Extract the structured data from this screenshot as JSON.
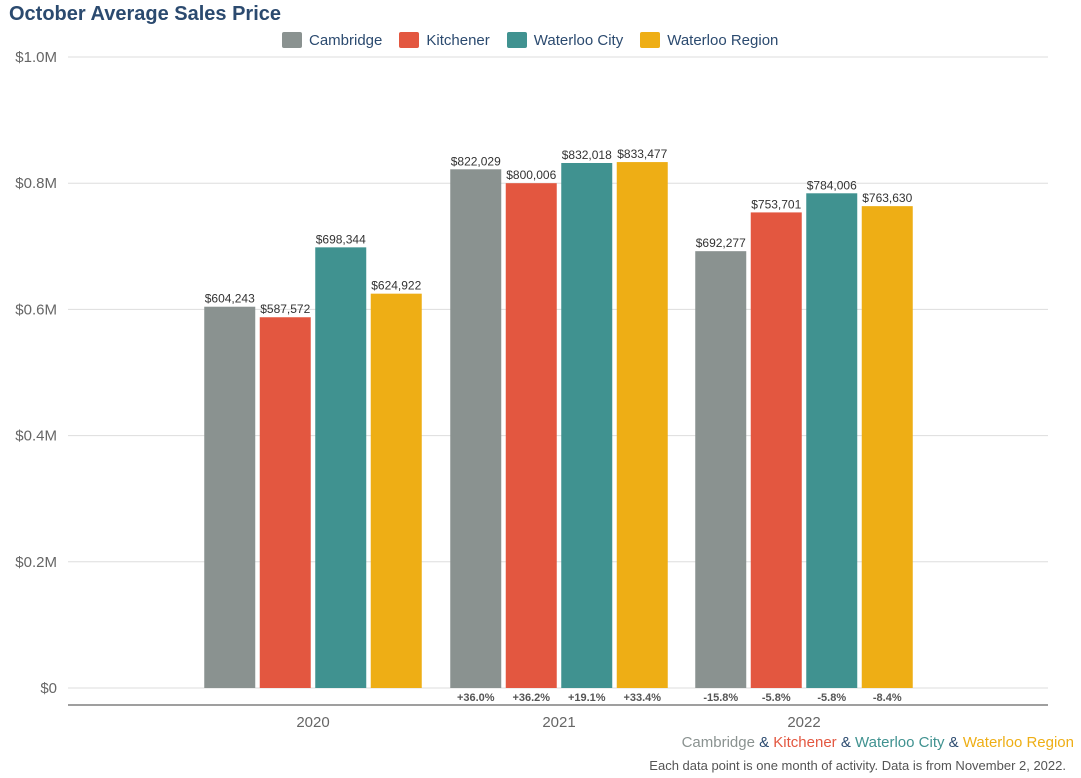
{
  "chart_data": {
    "type": "bar",
    "title": "October Average Sales Price",
    "categories": [
      "2020",
      "2021",
      "2022"
    ],
    "series": [
      {
        "name": "Cambridge",
        "color": "#8a9290",
        "values": [
          604243,
          822029,
          692277
        ],
        "value_labels": [
          "$604,243",
          "$822,029",
          "$692,277"
        ],
        "change_labels": [
          "",
          "+36.0%",
          "-15.8%"
        ]
      },
      {
        "name": "Kitchener",
        "color": "#e35740",
        "values": [
          587572,
          800006,
          753701
        ],
        "value_labels": [
          "$587,572",
          "$800,006",
          "$753,701"
        ],
        "change_labels": [
          "",
          "+36.2%",
          "-5.8%"
        ]
      },
      {
        "name": "Waterloo City",
        "color": "#409290",
        "values": [
          698344,
          832018,
          784006
        ],
        "value_labels": [
          "$698,344",
          "$832,018",
          "$784,006"
        ],
        "change_labels": [
          "",
          "+19.1%",
          "-5.8%"
        ]
      },
      {
        "name": "Waterloo Region",
        "color": "#eeae15",
        "values": [
          624922,
          833477,
          763630
        ],
        "value_labels": [
          "$624,922",
          "$833,477",
          "$763,630"
        ],
        "change_labels": [
          "",
          "+33.4%",
          "-8.4%"
        ]
      }
    ],
    "ylim": [
      0,
      1000000
    ],
    "yticks": [
      0,
      200000,
      400000,
      600000,
      800000,
      1000000
    ],
    "ytick_labels": [
      "$0",
      "$0.2M",
      "$0.4M",
      "$0.6M",
      "$0.8M",
      "$1.0M"
    ],
    "xlabel": "",
    "ylabel": "",
    "grid": true,
    "legend_position": "top-center"
  },
  "footer": {
    "series_sep": " & ",
    "note": "Each data point is one month of activity. Data is from November 2, 2022."
  }
}
